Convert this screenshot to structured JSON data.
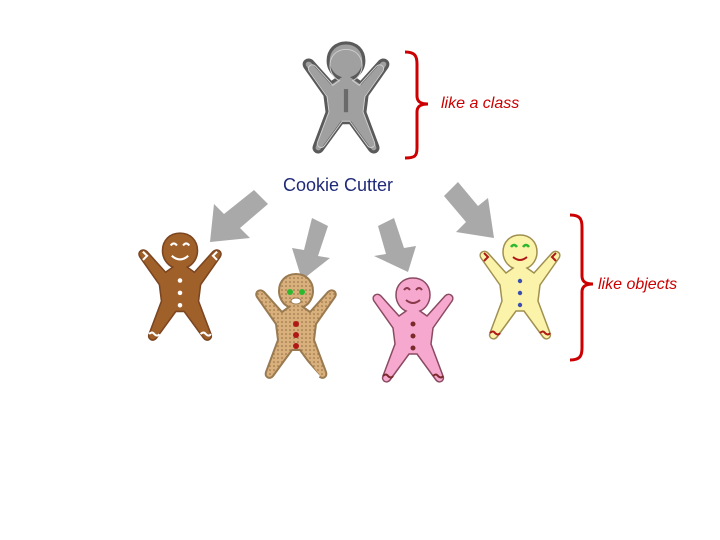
{
  "labels": {
    "cutter": "Cookie Cutter",
    "class": "like a class",
    "objects": "like objects"
  },
  "colors": {
    "cutter_fill": "#a0a0a0",
    "cutter_stroke": "#5a5a5a",
    "arrow": "#a9a9a9",
    "bracket": "#cc0000",
    "cutter_label": "#1f2a78",
    "cookie_brown": "#a0602a",
    "cookie_tan": "#d9b07c",
    "cookie_pink": "#f7a8cf",
    "cookie_yellow": "#fbf3a9",
    "icing": "#ffffff",
    "button_red": "#b01818",
    "eye_green": "#2fb82f",
    "button_blue": "#3a4fb0"
  },
  "icons": [
    "cookie-cutter-icon",
    "brown-gingerbread-icon",
    "tan-gingerbread-icon",
    "pink-gingerbread-icon",
    "yellow-gingerbread-icon",
    "arrow-icon",
    "bracket-icon"
  ]
}
